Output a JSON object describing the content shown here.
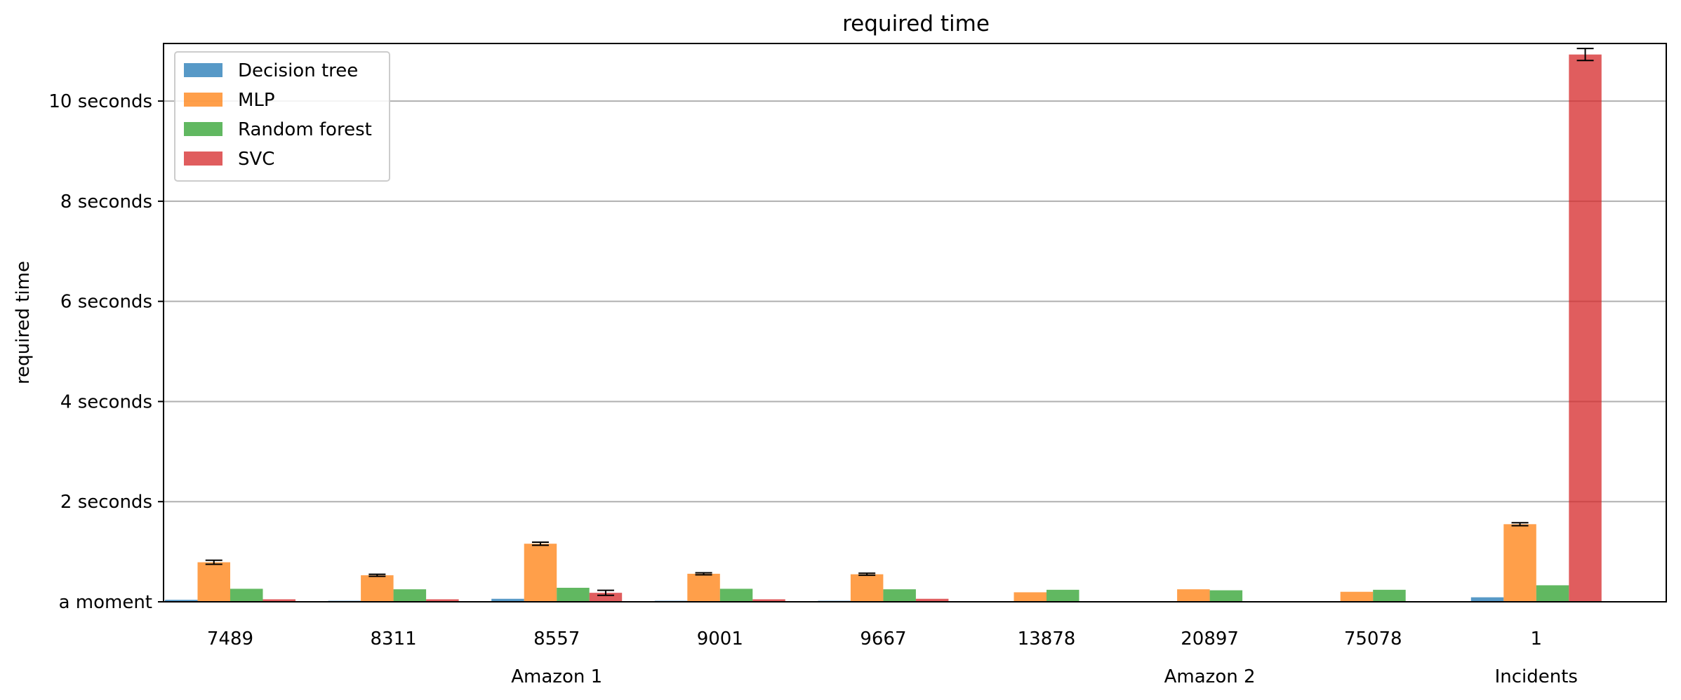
{
  "chart_data": {
    "type": "bar",
    "title": "required time",
    "ylabel": "required time",
    "xlabel": "",
    "ylim": [
      0,
      11.15
    ],
    "yticks": [
      {
        "value": 0,
        "label": "a moment"
      },
      {
        "value": 2,
        "label": "2 seconds"
      },
      {
        "value": 4,
        "label": "4 seconds"
      },
      {
        "value": 6,
        "label": "6 seconds"
      },
      {
        "value": 8,
        "label": "8 seconds"
      },
      {
        "value": 10,
        "label": "10 seconds"
      }
    ],
    "grid": true,
    "legend_position": "top-left",
    "categories": [
      "7489",
      "8311",
      "8557",
      "9001",
      "9667",
      "13878",
      "20897",
      "75078",
      "1"
    ],
    "groups": [
      {
        "label": "Amazon 1",
        "categories": [
          "7489",
          "8311",
          "8557",
          "9001",
          "9667"
        ]
      },
      {
        "label": "Amazon 2",
        "categories": [
          "13878",
          "20897",
          "75078"
        ]
      },
      {
        "label": "Incidents",
        "categories": [
          "1"
        ]
      }
    ],
    "series": [
      {
        "name": "Decision tree",
        "color": "#1f77b4",
        "values": [
          0.04,
          0.02,
          0.06,
          0.02,
          0.02,
          0.0,
          0.0,
          0.0,
          0.09
        ],
        "errors": [
          null,
          null,
          null,
          null,
          null,
          null,
          null,
          null,
          null
        ]
      },
      {
        "name": "MLP",
        "color": "#ff7f0e",
        "values": [
          0.79,
          0.53,
          1.16,
          0.56,
          0.55,
          0.19,
          0.25,
          0.2,
          1.55
        ],
        "errors": [
          0.04,
          0.02,
          0.03,
          0.02,
          0.02,
          null,
          null,
          null,
          0.03
        ]
      },
      {
        "name": "Random forest",
        "color": "#2ca02c",
        "values": [
          0.26,
          0.25,
          0.28,
          0.26,
          0.25,
          0.24,
          0.23,
          0.24,
          0.33
        ],
        "errors": [
          null,
          null,
          null,
          null,
          null,
          null,
          null,
          null,
          null
        ]
      },
      {
        "name": "SVC",
        "color": "#d62728",
        "values": [
          0.05,
          0.05,
          0.18,
          0.05,
          0.06,
          0.0,
          0.0,
          0.0,
          10.93
        ],
        "errors": [
          null,
          null,
          0.05,
          null,
          null,
          null,
          null,
          null,
          0.12
        ]
      }
    ]
  }
}
